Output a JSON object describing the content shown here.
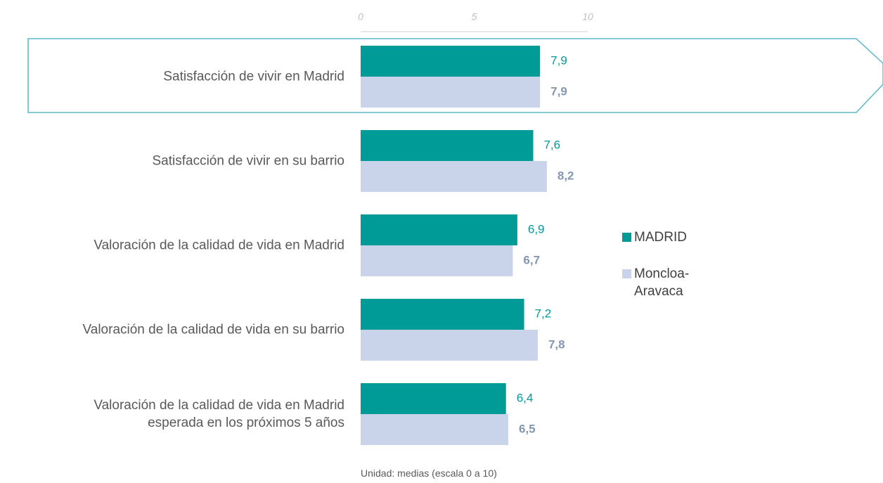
{
  "chart_data": {
    "type": "bar",
    "orientation": "horizontal",
    "categories": [
      "Satisfacción de vivir en Madrid",
      "Satisfacción de vivir en su barrio",
      "Valoración de la calidad de vida en Madrid",
      "Valoración de la calidad de vida en su barrio",
      "Valoración de la calidad de vida en Madrid esperada en los próximos 5 años"
    ],
    "series": [
      {
        "name": "MADRID",
        "color": "#009b97",
        "values": [
          7.9,
          7.6,
          6.9,
          7.2,
          6.4
        ],
        "value_labels": [
          "7,9",
          "7,6",
          "6,9",
          "7,2",
          "6,4"
        ]
      },
      {
        "name": "Moncloa-Aravaca",
        "color": "#c9d4ea",
        "values": [
          7.9,
          8.2,
          6.7,
          7.8,
          6.5
        ],
        "value_labels": [
          "7,9",
          "8,2",
          "6,7",
          "7,8",
          "6,5"
        ]
      }
    ],
    "xlim": [
      0,
      10
    ],
    "xticks": [
      0,
      5,
      10
    ],
    "legend_position": "right",
    "footnote": "Unidad: medias (escala 0 a 10)"
  }
}
